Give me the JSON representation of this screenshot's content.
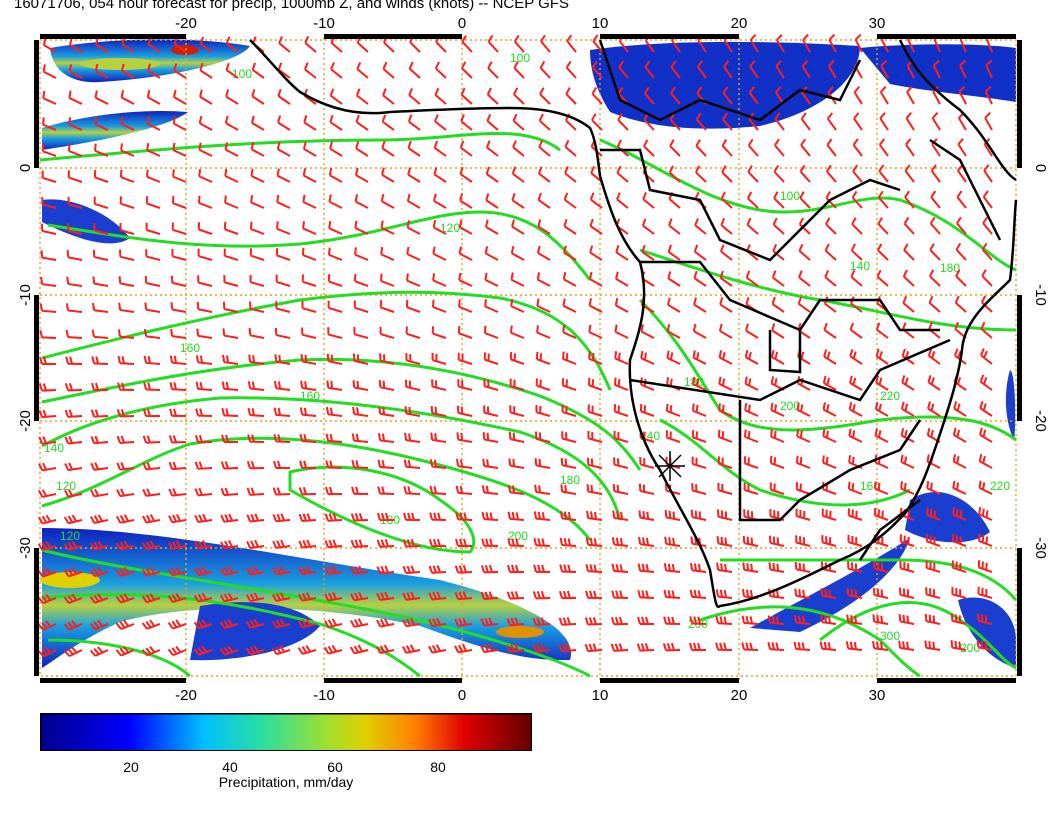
{
  "title": "16071706, 054 hour forecast for precip, 1000mb Z, and winds (knots) -- NCEP GFS",
  "map": {
    "lon_ticks": [
      "-20",
      "-10",
      "0",
      "10",
      "20",
      "30"
    ],
    "lat_ticks": [
      "0",
      "-10",
      "-20",
      "-30"
    ],
    "lon_range": [
      -30,
      40
    ],
    "lat_range": [
      -40,
      10
    ],
    "contour_labels": [
      "100",
      "120",
      "140",
      "160",
      "180",
      "200",
      "220",
      "300"
    ],
    "colors": {
      "contour": "#22dd22",
      "barb": "#ff1e1e",
      "grid": "#e6a21e",
      "coast": "#000000"
    }
  },
  "legend": {
    "ticks": [
      "20",
      "40",
      "60",
      "80"
    ],
    "label": "Precipitation, mm/day",
    "range": [
      0,
      100
    ]
  }
}
